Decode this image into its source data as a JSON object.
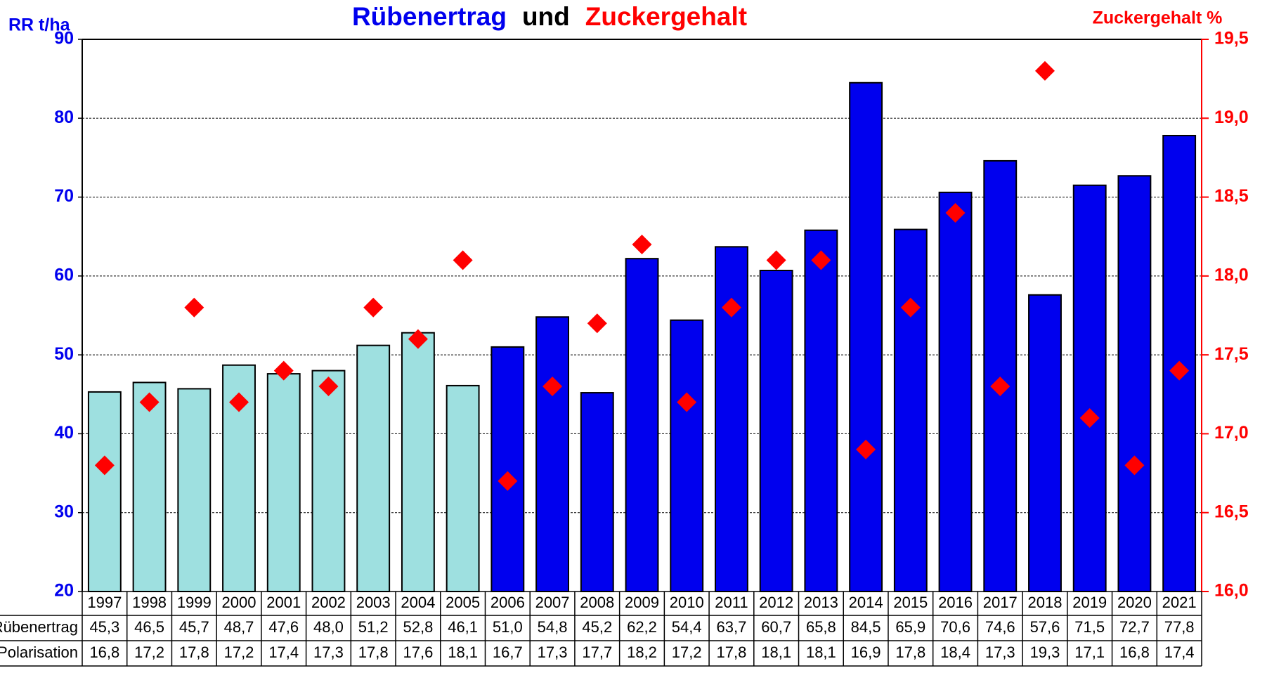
{
  "chart_data": {
    "type": "bar_scatter",
    "title": [
      {
        "text": "Rübenertrag",
        "color": "#0000ee"
      },
      {
        "text": "und",
        "color": "#000000"
      },
      {
        "text": "Zuckergehalt",
        "color": "#ff0000"
      }
    ],
    "y_label": "RR t/ha",
    "y2_label": "Zuckergehalt %",
    "categories": [
      "1997",
      "1998",
      "1999",
      "2000",
      "2001",
      "2002",
      "2003",
      "2004",
      "2005",
      "2006",
      "2007",
      "2008",
      "2009",
      "2010",
      "2011",
      "2012",
      "2013",
      "2014",
      "2015",
      "2016",
      "2017",
      "2018",
      "2019",
      "2020",
      "2021"
    ],
    "series": [
      {
        "name": "Rübenertrag",
        "type": "bar",
        "colors": [
          "#9ee0e0",
          "#9ee0e0",
          "#9ee0e0",
          "#9ee0e0",
          "#9ee0e0",
          "#9ee0e0",
          "#9ee0e0",
          "#9ee0e0",
          "#9ee0e0",
          "#0000ee",
          "#0000ee",
          "#0000ee",
          "#0000ee",
          "#0000ee",
          "#0000ee",
          "#0000ee",
          "#0000ee",
          "#0000ee",
          "#0000ee",
          "#0000ee",
          "#0000ee",
          "#0000ee",
          "#0000ee",
          "#0000ee",
          "#0000ee"
        ],
        "values": [
          45.3,
          46.5,
          45.7,
          48.7,
          47.6,
          48.0,
          51.2,
          52.8,
          46.1,
          51.0,
          54.8,
          45.2,
          62.2,
          54.4,
          63.7,
          60.7,
          65.8,
          84.5,
          65.9,
          70.6,
          74.6,
          57.6,
          71.5,
          72.7,
          77.8
        ],
        "value_labels": [
          "45,3",
          "46,5",
          "45,7",
          "48,7",
          "47,6",
          "48,0",
          "51,2",
          "52,8",
          "46,1",
          "51,0",
          "54,8",
          "45,2",
          "62,2",
          "54,4",
          "63,7",
          "60,7",
          "65,8",
          "84,5",
          "65,9",
          "70,6",
          "74,6",
          "57,6",
          "71,5",
          "72,7",
          "77,8"
        ]
      },
      {
        "name": "Polarisation",
        "type": "scatter",
        "axis": "y2",
        "color": "#ff0000",
        "values": [
          16.8,
          17.2,
          17.8,
          17.2,
          17.4,
          17.3,
          17.8,
          17.6,
          18.1,
          16.7,
          17.3,
          17.7,
          18.2,
          17.2,
          17.8,
          18.1,
          18.1,
          16.9,
          17.8,
          18.4,
          17.3,
          19.3,
          17.1,
          16.8,
          17.4
        ],
        "value_labels": [
          "16,8",
          "17,2",
          "17,8",
          "17,2",
          "17,4",
          "17,3",
          "17,8",
          "17,6",
          "18,1",
          "16,7",
          "17,3",
          "17,7",
          "18,2",
          "17,2",
          "17,8",
          "18,1",
          "18,1",
          "16,9",
          "17,8",
          "18,4",
          "17,3",
          "19,3",
          "17,1",
          "16,8",
          "17,4"
        ]
      }
    ],
    "ylim": [
      20,
      90
    ],
    "yticks": [
      20,
      30,
      40,
      50,
      60,
      70,
      80,
      90
    ],
    "y2lim": [
      16,
      19.5
    ],
    "y2ticks": [
      {
        "value": 16,
        "label": "16,0"
      },
      {
        "value": 16.5,
        "label": "16,5"
      },
      {
        "value": 17,
        "label": "17,0"
      },
      {
        "value": 17.5,
        "label": "17,5"
      },
      {
        "value": 18,
        "label": "18,0"
      },
      {
        "value": 18.5,
        "label": "18,5"
      },
      {
        "value": 19,
        "label": "19,0"
      },
      {
        "value": 19.5,
        "label": "19,5"
      }
    ],
    "grid": true
  }
}
